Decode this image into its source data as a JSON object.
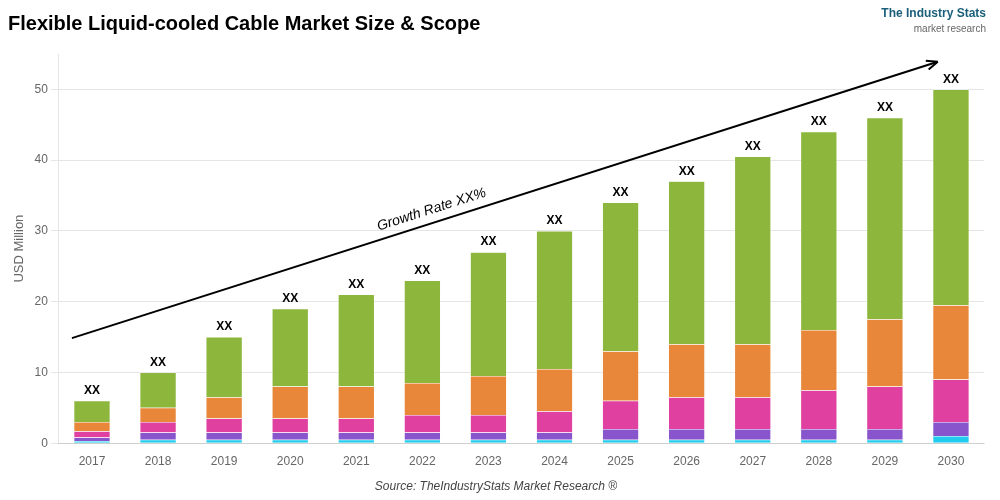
{
  "chart_data": {
    "type": "bar",
    "title": "Flexible Liquid-cooled Cable Market Size & Scope",
    "ylabel": "USD Million",
    "source": "Source: TheIndustryStats Market Research ®",
    "categories": [
      "2017",
      "2018",
      "2019",
      "2020",
      "2021",
      "2022",
      "2023",
      "2024",
      "2025",
      "2026",
      "2027",
      "2028",
      "2029",
      "2030"
    ],
    "series": [
      {
        "color": "#22ccee",
        "values": [
          0.3,
          0.5,
          0.5,
          0.5,
          0.5,
          0.5,
          0.5,
          0.5,
          0.5,
          0.5,
          0.5,
          0.5,
          0.5,
          1.0
        ]
      },
      {
        "color": "#8855cc",
        "values": [
          0.5,
          1.0,
          1.0,
          1.0,
          1.0,
          1.0,
          1.0,
          1.0,
          1.5,
          1.5,
          1.5,
          1.5,
          1.5,
          2.0
        ]
      },
      {
        "color": "#e040a0",
        "values": [
          0.9,
          1.5,
          2.0,
          2.0,
          2.0,
          2.5,
          2.5,
          3.0,
          4.0,
          4.5,
          4.5,
          5.5,
          6.0,
          6.0
        ]
      },
      {
        "color": "#e8873a",
        "values": [
          1.3,
          2.0,
          3.0,
          4.5,
          4.5,
          4.5,
          5.5,
          6.0,
          7.0,
          7.5,
          7.5,
          8.5,
          9.5,
          10.5
        ]
      },
      {
        "color": "#8db63c",
        "values": [
          3.0,
          5.0,
          8.5,
          11.0,
          13.0,
          14.5,
          17.5,
          19.5,
          21.0,
          23.0,
          26.5,
          28.0,
          28.5,
          30.5
        ]
      }
    ],
    "total_labels": [
      "XX",
      "XX",
      "XX",
      "XX",
      "XX",
      "XX",
      "XX",
      "XX",
      "XX",
      "XX",
      "XX",
      "XX",
      "XX",
      "XX"
    ],
    "annotations": [
      "Growth Rate XX%"
    ],
    "logo": [
      "The Industry Stats",
      "market research"
    ],
    "stacked": true,
    "ylim": [
      0,
      55
    ],
    "yticks": [
      0,
      10,
      20,
      30,
      40,
      50
    ],
    "grid": true
  }
}
